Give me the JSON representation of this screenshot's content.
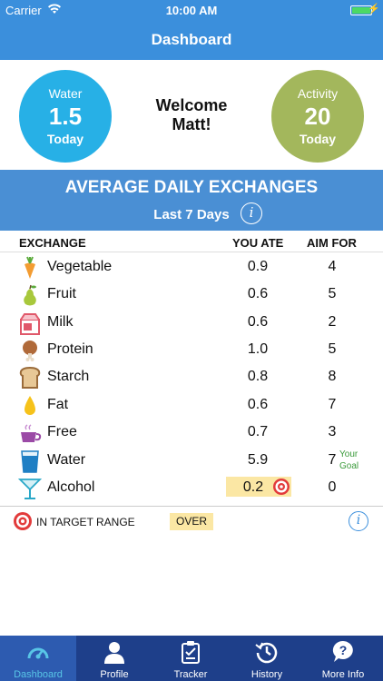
{
  "status": {
    "carrier": "Carrier",
    "time": "10:00 AM"
  },
  "nav": {
    "title": "Dashboard"
  },
  "hero": {
    "water": {
      "label": "Water",
      "value": "1.5",
      "sub": "Today"
    },
    "welcome_line1": "Welcome",
    "welcome_line2": "Matt!",
    "activity": {
      "label": "Activity",
      "value": "20",
      "sub": "Today"
    }
  },
  "banner": {
    "title": "AVERAGE DAILY EXCHANGES",
    "subtitle": "Last 7 Days"
  },
  "table": {
    "headers": {
      "exchange": "EXCHANGE",
      "you_ate": "YOU ATE",
      "aim_for": "AIM FOR"
    },
    "rows": [
      {
        "name": "Vegetable",
        "ate": "0.9",
        "aim": "4",
        "icon": "carrot-icon"
      },
      {
        "name": "Fruit",
        "ate": "0.6",
        "aim": "5",
        "icon": "pear-icon"
      },
      {
        "name": "Milk",
        "ate": "0.6",
        "aim": "2",
        "icon": "milk-carton-icon"
      },
      {
        "name": "Protein",
        "ate": "1.0",
        "aim": "5",
        "icon": "drumstick-icon"
      },
      {
        "name": "Starch",
        "ate": "0.8",
        "aim": "8",
        "icon": "bread-icon"
      },
      {
        "name": "Fat",
        "ate": "0.6",
        "aim": "7",
        "icon": "oil-drop-icon"
      },
      {
        "name": "Free",
        "ate": "0.7",
        "aim": "3",
        "icon": "cup-icon"
      },
      {
        "name": "Water",
        "ate": "5.9",
        "aim": "7",
        "icon": "water-glass-icon",
        "note": "Your Goal"
      },
      {
        "name": "Alcohol",
        "ate": "0.2",
        "aim": "0",
        "icon": "cocktail-icon",
        "over": true
      }
    ]
  },
  "legend": {
    "in_target": "IN TARGET RANGE",
    "over": "OVER"
  },
  "tabs": [
    {
      "label": "Dashboard",
      "icon": "gauge-icon",
      "active": true
    },
    {
      "label": "Profile",
      "icon": "person-icon"
    },
    {
      "label": "Tracker",
      "icon": "clipboard-icon"
    },
    {
      "label": "History",
      "icon": "history-clock-icon"
    },
    {
      "label": "More Info",
      "icon": "question-icon"
    }
  ],
  "colors": {
    "primary": "#3b8fdc",
    "water": "#27b0e6",
    "activity": "#a3b75c",
    "tabbar": "#1e3f8a",
    "highlight": "#fbe7a4",
    "goal_text": "#3a9a3a"
  }
}
